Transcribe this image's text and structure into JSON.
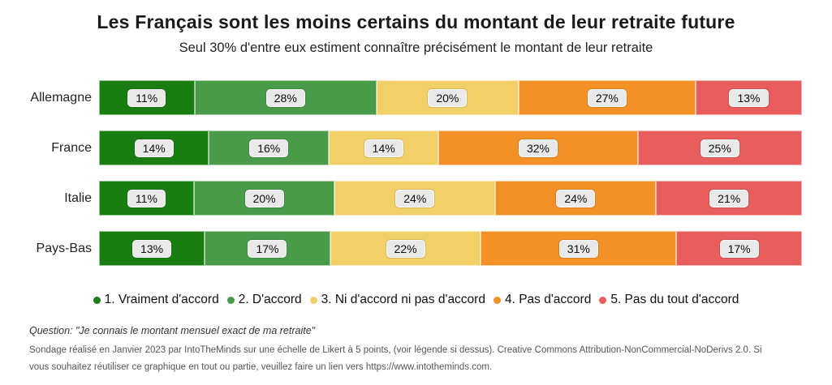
{
  "title": "Les Français sont les moins certains du montant de leur retraite future",
  "subtitle": "Seul 30% d'entre eux estiment connaître précisément le montant de leur retraite",
  "chart_data": {
    "type": "bar",
    "orientation": "horizontal-stacked",
    "categories": [
      "Allemagne",
      "France",
      "Italie",
      "Pays-Bas"
    ],
    "series": [
      {
        "name": "1. Vraiment d'accord",
        "color": "#1a7d12",
        "values": [
          11,
          14,
          11,
          13
        ]
      },
      {
        "name": "2. D'accord",
        "color": "#4a9b49",
        "values": [
          28,
          16,
          20,
          17
        ]
      },
      {
        "name": "3. Ni d'accord ni pas d'accord",
        "color": "#f2d068",
        "values": [
          20,
          14,
          24,
          22
        ]
      },
      {
        "name": "4. Pas d'accord",
        "color": "#f39127",
        "values": [
          27,
          32,
          24,
          31
        ]
      },
      {
        "name": "5. Pas du tout d'accord",
        "color": "#e85d5d",
        "values": [
          13,
          25,
          21,
          17
        ]
      }
    ],
    "value_suffix": "%",
    "value_label_style": "grey-pill",
    "legend_position": "bottom",
    "xlim": [
      0,
      100
    ],
    "grid": false
  },
  "footer": {
    "question": "Question: \"Je connais le montant mensuel exact de ma retraite\"",
    "line1": "Sondage réalisé en Janvier 2023 par IntoTheMinds sur une échelle de Likert à 5 points, (voir légende si dessus). Creative Commons Attribution-NonCommercial-NoDerivs 2.0. Si",
    "line2": "vous souhaitez réutiliser ce graphique en tout ou partie, veuillez faire un lien vers https://www.intotheminds.com."
  }
}
